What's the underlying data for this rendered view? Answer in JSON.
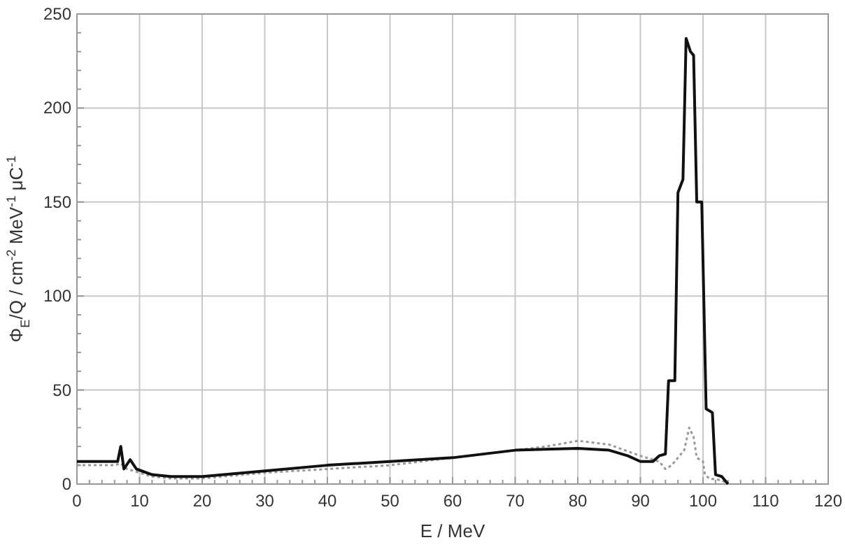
{
  "chart_data": {
    "type": "line",
    "xlabel": "E / MeV",
    "ylabel": "Φ$_{E}$/Q / cm$^{-2}$ MeV$^{-1}$ μC$^{-1}$",
    "xlim": [
      0,
      120
    ],
    "ylim": [
      0,
      250
    ],
    "xticks": [
      0,
      {
        "value": 2,
        "label": null
      },
      {
        "value": 4,
        "label": null
      },
      {
        "value": 6,
        "label": null
      },
      {
        "value": 8,
        "label": null
      },
      10,
      {
        "value": 12,
        "label": null
      },
      {
        "value": 14,
        "label": null
      },
      {
        "value": 16,
        "label": null
      },
      {
        "value": 18,
        "label": null
      },
      20,
      {
        "value": 22,
        "label": null
      },
      {
        "value": 24,
        "label": null
      },
      {
        "value": 26,
        "label": null
      },
      {
        "value": 28,
        "label": null
      },
      30,
      {
        "value": 32,
        "label": null
      },
      {
        "value": 34,
        "label": null
      },
      {
        "value": 36,
        "label": null
      },
      {
        "value": 38,
        "label": null
      },
      40,
      {
        "value": 42,
        "label": null
      },
      {
        "value": 44,
        "label": null
      },
      {
        "value": 46,
        "label": null
      },
      {
        "value": 48,
        "label": null
      },
      50,
      {
        "value": 52,
        "label": null
      },
      {
        "value": 54,
        "label": null
      },
      {
        "value": 56,
        "label": null
      },
      {
        "value": 58,
        "label": null
      },
      60,
      {
        "value": 62,
        "label": null
      },
      {
        "value": 64,
        "label": null
      },
      {
        "value": 66,
        "label": null
      },
      {
        "value": 68,
        "label": null
      },
      70,
      {
        "value": 72,
        "label": null
      },
      {
        "value": 74,
        "label": null
      },
      {
        "value": 76,
        "label": null
      },
      {
        "value": 78,
        "label": null
      },
      80,
      {
        "value": 82,
        "label": null
      },
      {
        "value": 84,
        "label": null
      },
      {
        "value": 86,
        "label": null
      },
      {
        "value": 88,
        "label": null
      },
      90,
      {
        "value": 92,
        "label": null
      },
      {
        "value": 94,
        "label": null
      },
      {
        "value": 96,
        "label": null
      },
      {
        "value": 98,
        "label": null
      },
      100,
      {
        "value": 102,
        "label": null
      },
      {
        "value": 104,
        "label": null
      },
      {
        "value": 106,
        "label": null
      },
      {
        "value": 108,
        "label": null
      },
      110,
      {
        "value": 112,
        "label": null
      },
      {
        "value": 114,
        "label": null
      },
      {
        "value": 116,
        "label": null
      },
      {
        "value": 118,
        "label": null
      },
      120
    ],
    "yticks": [
      0,
      {
        "value": 10,
        "label": null
      },
      {
        "value": 20,
        "label": null
      },
      {
        "value": 30,
        "label": null
      },
      {
        "value": 40,
        "label": null
      },
      50,
      {
        "value": 60,
        "label": null
      },
      {
        "value": 70,
        "label": null
      },
      {
        "value": 80,
        "label": null
      },
      {
        "value": 90,
        "label": null
      },
      100,
      {
        "value": 110,
        "label": null
      },
      {
        "value": 120,
        "label": null
      },
      {
        "value": 130,
        "label": null
      },
      {
        "value": 140,
        "label": null
      },
      150,
      {
        "value": 160,
        "label": null
      },
      {
        "value": 170,
        "label": null
      },
      {
        "value": 180,
        "label": null
      },
      {
        "value": 190,
        "label": null
      },
      200,
      {
        "value": 210,
        "label": null
      },
      {
        "value": 220,
        "label": null
      },
      {
        "value": 230,
        "label": null
      },
      {
        "value": 240,
        "label": null
      },
      250
    ],
    "grid": true,
    "series": [
      {
        "color": "#999999",
        "line_style": "dotted",
        "x": [
          0,
          6,
          7,
          8,
          10,
          12,
          15,
          20,
          30,
          40,
          50,
          60,
          70,
          75,
          80,
          85,
          90,
          93,
          94,
          95,
          96,
          97,
          97.8,
          98.5,
          99,
          100,
          100.3,
          101,
          103,
          104
        ],
        "values": [
          10,
          10,
          11,
          8,
          6,
          4,
          3,
          3,
          6,
          8,
          10,
          14,
          18,
          20,
          23,
          21,
          15,
          12,
          8,
          10,
          14,
          18,
          30,
          25,
          14,
          12,
          5,
          3,
          2,
          0
        ]
      },
      {
        "color": "#111111",
        "line_style": "solid",
        "x": [
          0,
          6,
          6.5,
          7,
          7.5,
          8.5,
          9.5,
          12,
          15,
          20,
          30,
          40,
          50,
          60,
          70,
          80,
          85,
          88,
          90,
          92,
          93,
          94,
          94.5,
          95.5,
          96,
          96.8,
          97.3,
          98,
          98.5,
          99,
          99.8,
          100.5,
          101.5,
          102,
          103,
          104
        ],
        "values": [
          12,
          12,
          12,
          20,
          8,
          13,
          8,
          5,
          4,
          4,
          7,
          10,
          12,
          14,
          18,
          19,
          18,
          15,
          12,
          12,
          15,
          16,
          55,
          55,
          155,
          162,
          237,
          230,
          228,
          150,
          150,
          40,
          38,
          5,
          4,
          0
        ]
      }
    ]
  }
}
